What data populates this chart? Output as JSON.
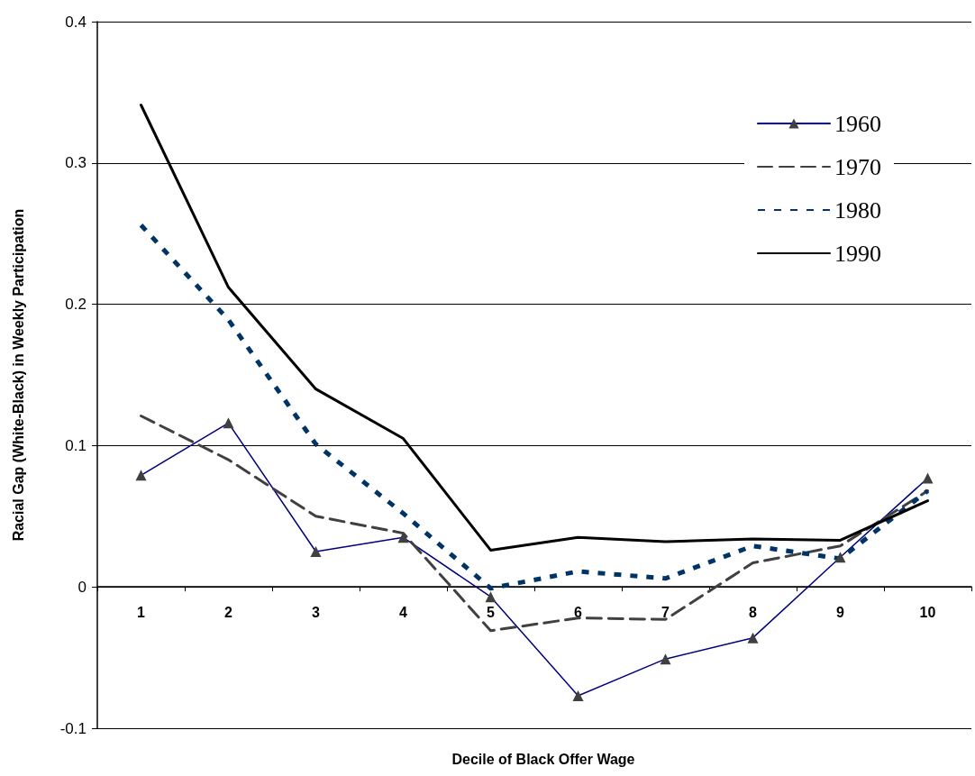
{
  "chart_data": {
    "type": "line",
    "xlabel": "Decile of Black Offer Wage",
    "ylabel": "Racial Gap (White-Black) in Weekly Participation",
    "categories": [
      "1",
      "2",
      "3",
      "4",
      "5",
      "6",
      "7",
      "8",
      "9",
      "10"
    ],
    "series": [
      {
        "name": "1960",
        "color": "#000080",
        "marker": "triangle",
        "line_style": "solid",
        "values": [
          0.079,
          0.116,
          0.025,
          0.035,
          -0.007,
          -0.077,
          -0.051,
          -0.036,
          0.021,
          0.077
        ]
      },
      {
        "name": "1970",
        "color": "#404040",
        "marker": "none",
        "line_style": "dashed",
        "values": [
          0.121,
          0.09,
          0.05,
          0.038,
          -0.031,
          -0.022,
          -0.023,
          0.017,
          0.029,
          0.068
        ]
      },
      {
        "name": "1980",
        "color": "#003366",
        "marker": "none",
        "line_style": "dotted",
        "values": [
          0.256,
          0.189,
          0.101,
          0.052,
          -0.001,
          0.011,
          0.006,
          0.029,
          0.02,
          0.068
        ]
      },
      {
        "name": "1990",
        "color": "#000000",
        "marker": "none",
        "line_style": "solid",
        "values": [
          0.341,
          0.212,
          0.14,
          0.105,
          0.026,
          0.035,
          0.032,
          0.034,
          0.033,
          0.061
        ]
      }
    ],
    "ylim": [
      -0.1,
      0.4
    ],
    "yticks": [
      -0.1,
      0,
      0.1,
      0.2,
      0.3,
      0.4
    ],
    "grid": "y",
    "legend": "top right"
  }
}
